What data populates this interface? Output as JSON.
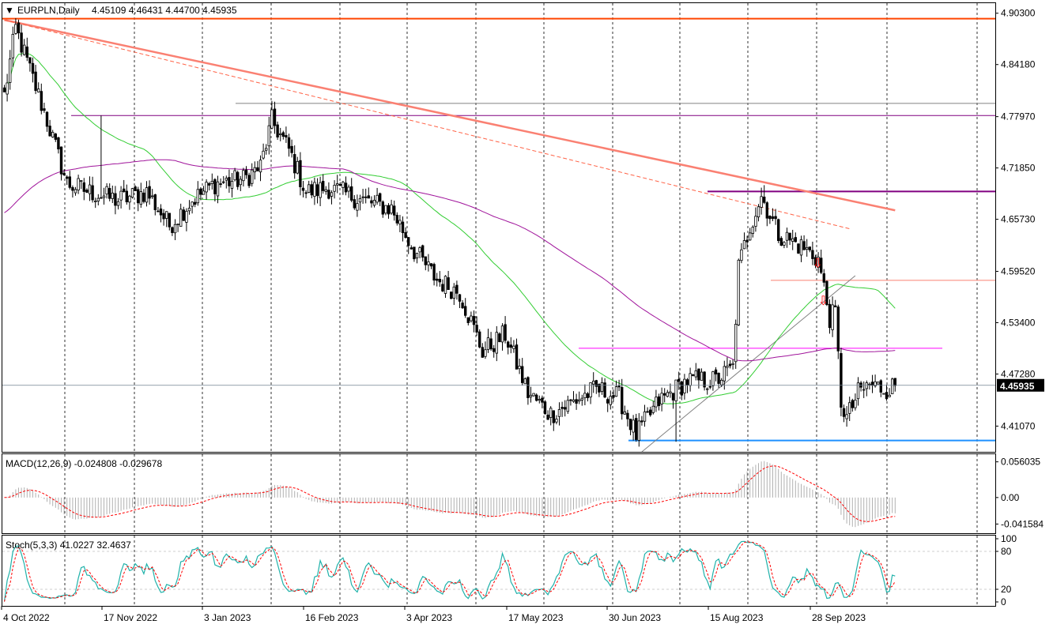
{
  "chart_data": [
    {
      "type": "candlestick",
      "title": "EURPLN,Daily",
      "ohlc_header": [
        "4.45109",
        "4.46431",
        "4.44700",
        "4.45935"
      ],
      "current_price": "4.45935",
      "ylim": [
        4.38,
        4.915
      ],
      "y_ticks": [
        "4.90300",
        "4.84180",
        "4.77970",
        "4.71850",
        "4.65730",
        "4.59520",
        "4.53400",
        "4.47280",
        "4.41070"
      ],
      "x_tick_labels": [
        "4 Oct 2022",
        "17 Nov 2022",
        "3 Jan 2023",
        "16 Feb 2023",
        "3 Apr 2023",
        "17 May 2023",
        "30 Jun 2023",
        "15 Aug 2023",
        "28 Sep 2023"
      ],
      "anchors": [
        {
          "bar": 0,
          "close": 4.805
        },
        {
          "bar": 4,
          "close": 4.885
        },
        {
          "bar": 15,
          "close": 4.775
        },
        {
          "bar": 22,
          "close": 4.7
        },
        {
          "bar": 30,
          "close": 4.69
        },
        {
          "bar": 40,
          "close": 4.68
        },
        {
          "bar": 50,
          "close": 4.69
        },
        {
          "bar": 58,
          "close": 4.65
        },
        {
          "bar": 66,
          "close": 4.68
        },
        {
          "bar": 74,
          "close": 4.7
        },
        {
          "bar": 84,
          "close": 4.705
        },
        {
          "bar": 90,
          "close": 4.72
        },
        {
          "bar": 94,
          "close": 4.775
        },
        {
          "bar": 100,
          "close": 4.74
        },
        {
          "bar": 106,
          "close": 4.69
        },
        {
          "bar": 114,
          "close": 4.695
        },
        {
          "bar": 126,
          "close": 4.68
        },
        {
          "bar": 136,
          "close": 4.67
        },
        {
          "bar": 144,
          "close": 4.62
        },
        {
          "bar": 152,
          "close": 4.585
        },
        {
          "bar": 160,
          "close": 4.57
        },
        {
          "bar": 168,
          "close": 4.5
        },
        {
          "bar": 176,
          "close": 4.52
        },
        {
          "bar": 184,
          "close": 4.45
        },
        {
          "bar": 192,
          "close": 4.425
        },
        {
          "bar": 200,
          "close": 4.44
        },
        {
          "bar": 208,
          "close": 4.455
        },
        {
          "bar": 216,
          "close": 4.445
        },
        {
          "bar": 222,
          "close": 4.4
        },
        {
          "bar": 230,
          "close": 4.44
        },
        {
          "bar": 240,
          "close": 4.465
        },
        {
          "bar": 250,
          "close": 4.465
        },
        {
          "bar": 256,
          "close": 4.48
        },
        {
          "bar": 258,
          "close": 4.6
        },
        {
          "bar": 262,
          "close": 4.65
        },
        {
          "bar": 266,
          "close": 4.685
        },
        {
          "bar": 272,
          "close": 4.64
        },
        {
          "bar": 280,
          "close": 4.625
        },
        {
          "bar": 286,
          "close": 4.61
        },
        {
          "bar": 290,
          "close": 4.54
        },
        {
          "bar": 292,
          "close": 4.545
        },
        {
          "bar": 294,
          "close": 4.44
        },
        {
          "bar": 296,
          "close": 4.42
        },
        {
          "bar": 300,
          "close": 4.45
        },
        {
          "bar": 304,
          "close": 4.46
        },
        {
          "bar": 310,
          "close": 4.455
        },
        {
          "bar": 313,
          "close": 4.459
        }
      ],
      "horizontal_levels": [
        {
          "value": 4.8965,
          "color": "#ff4500"
        },
        {
          "value": 4.7955,
          "color": "#808080"
        },
        {
          "value": 4.781,
          "color": "#800080"
        },
        {
          "value": 4.6905,
          "color": "#800080"
        },
        {
          "value": 4.5845,
          "color": "#fa8072"
        },
        {
          "value": 4.5035,
          "color": "#ff00ff"
        },
        {
          "value": 4.3935,
          "color": "#1e90ff"
        }
      ],
      "trendlines": [
        {
          "from": [
            0,
            4.895
          ],
          "to": [
            313,
            4.668
          ],
          "color": "#fa8072",
          "style": "solid"
        },
        {
          "from": [
            0,
            4.895
          ],
          "to": [
            297,
            4.646
          ],
          "color": "#ff6347",
          "style": "dashed"
        },
        {
          "from": [
            224,
            4.38
          ],
          "to": [
            299,
            4.59
          ],
          "color": "#808080",
          "style": "solid"
        }
      ],
      "moving_averages": [
        {
          "color": "#32cd32"
        },
        {
          "color": "#a0149b"
        }
      ],
      "arrows": [
        {
          "bar": 285,
          "value": 4.6,
          "symbol": "⇩",
          "color": "#ff0000"
        },
        {
          "bar": 287,
          "value": 4.555,
          "symbol": "⇩",
          "color": "#ff0000"
        }
      ]
    },
    {
      "type": "histogram",
      "label": "MACD(12,26,9) -0.024808 -0.029678",
      "main": "-0.024808",
      "signal": "-0.029678",
      "ylim": [
        -0.056,
        0.068
      ],
      "y_ticks": [
        "0.056035",
        "0.00",
        "-0.041584"
      ]
    },
    {
      "type": "line",
      "label": "Stoch(5,3,3) 41.0227 32.4637",
      "main": "41.0227",
      "signal": "32.4637",
      "ylim": [
        0,
        100
      ],
      "y_ticks": [
        "100",
        "80",
        "20",
        "0"
      ],
      "levels": [
        20,
        80
      ]
    }
  ]
}
